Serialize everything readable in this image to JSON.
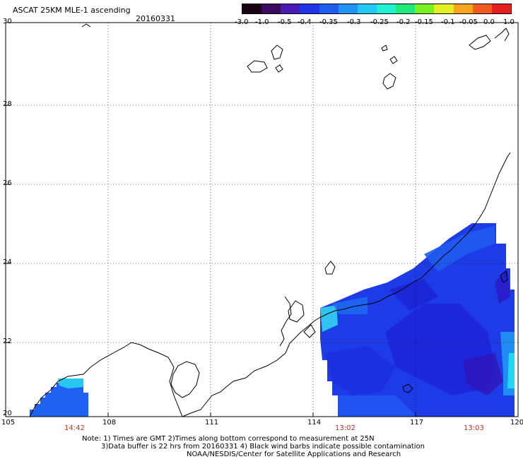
{
  "header": {
    "title": "ASCAT 25KM MLE-1 ascending",
    "date": "20160331"
  },
  "colorbar": {
    "labels": [
      "-3.0",
      "-1.0",
      "-0.5",
      "-0.4",
      "-0.35",
      "-0.3",
      "-0.25",
      "-0.2",
      "-0.15",
      "-0.1",
      "-0.05",
      "0.0",
      "1.0"
    ],
    "colors": [
      "#1a0010",
      "#3a0a5e",
      "#4a1ab4",
      "#1e34e6",
      "#1f5cf0",
      "#2193f5",
      "#22c9f2",
      "#1ef0d2",
      "#1de878",
      "#7af01e",
      "#e4f022",
      "#f7a51e",
      "#f25a1e",
      "#e41e1e"
    ]
  },
  "axes": {
    "x_ticks": [
      "105",
      "108",
      "111",
      "114",
      "117",
      "120"
    ],
    "y_ticks": [
      "20",
      "22",
      "24",
      "26",
      "28",
      "30"
    ]
  },
  "pass_times": [
    "14:42",
    "13:02",
    "13:03"
  ],
  "footer": {
    "line1": "Note: 1) Times are GMT 2)Times along bottom correspond to measurement at 25N",
    "line2": "3)Data buffer is 22 hrs from 20160331 4) Black wind barbs indicate possible contamination",
    "line3": "NOAA/NESDIS/Center for Satellite Applications and Research"
  },
  "colors": {
    "land_outline": "#000000",
    "grid": "#000000",
    "background": "#ffffff"
  }
}
